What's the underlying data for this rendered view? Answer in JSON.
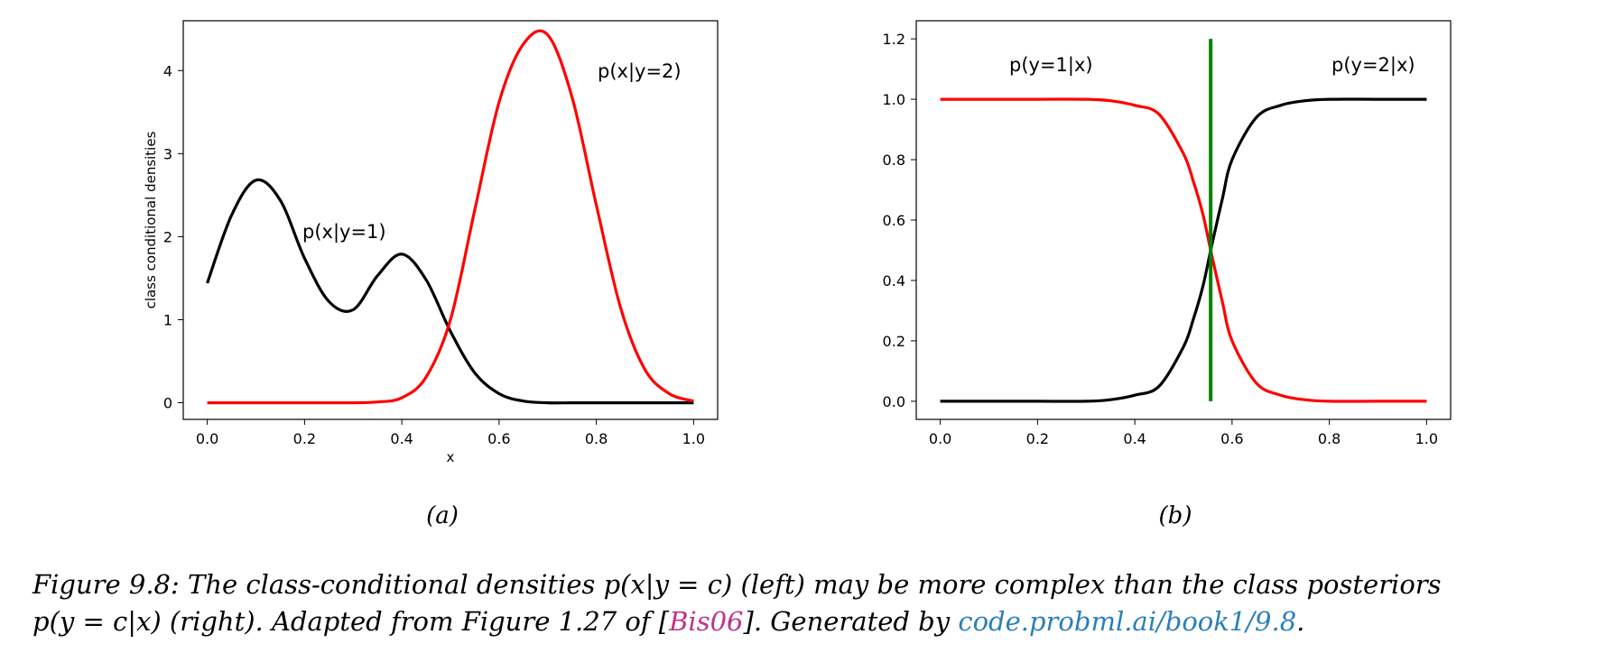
{
  "chart_data": [
    {
      "type": "line",
      "panel_label": "(a)",
      "xlabel": "x",
      "ylabel": "class conditional densities",
      "xlim": [
        0,
        1
      ],
      "ylim": [
        -0.2,
        4.6
      ],
      "xticks": [
        "0.0",
        "0.2",
        "0.4",
        "0.6",
        "0.8",
        "1.0"
      ],
      "yticks": [
        "0",
        "1",
        "2",
        "3",
        "4"
      ],
      "annotations": [
        "p(x|y=1)",
        "p(x|y=2)"
      ],
      "series": [
        {
          "color": "#000000",
          "x": [
            0,
            0.05,
            0.1,
            0.15,
            0.2,
            0.25,
            0.3,
            0.35,
            0.4,
            0.45,
            0.5,
            0.55,
            0.6,
            0.65,
            0.7,
            0.75,
            0.8,
            0.85,
            0.9,
            0.95,
            1.0
          ],
          "y": [
            1.44,
            2.26,
            2.68,
            2.44,
            1.74,
            1.22,
            1.12,
            1.53,
            1.79,
            1.48,
            0.86,
            0.36,
            0.11,
            0.02,
            0,
            0,
            0,
            0,
            0,
            0,
            0
          ]
        },
        {
          "color": "#ff0000",
          "x": [
            0,
            0.05,
            0.1,
            0.15,
            0.2,
            0.25,
            0.3,
            0.35,
            0.4,
            0.45,
            0.5,
            0.55,
            0.6,
            0.65,
            0.7,
            0.75,
            0.8,
            0.85,
            0.9,
            0.95,
            1.0
          ],
          "y": [
            0,
            0,
            0,
            0,
            0,
            0,
            0,
            0.01,
            0.06,
            0.31,
            1.0,
            2.32,
            3.62,
            4.32,
            4.43,
            3.68,
            2.38,
            1.14,
            0.4,
            0.11,
            0.02
          ]
        }
      ]
    },
    {
      "type": "line",
      "panel_label": "(b)",
      "xlim": [
        0,
        1
      ],
      "ylim": [
        -0.06,
        1.26
      ],
      "xticks": [
        "0.0",
        "0.2",
        "0.4",
        "0.6",
        "0.8",
        "1.0"
      ],
      "yticks": [
        "0.0",
        "0.2",
        "0.4",
        "0.6",
        "0.8",
        "1.0",
        "1.2"
      ],
      "annotations": [
        "p(y=1|x)",
        "p(y=2|x)"
      ],
      "decision_boundary": {
        "x": 0.556,
        "y_range": [
          0,
          1.2
        ],
        "color": "#008000"
      },
      "series": [
        {
          "color": "#ff0000",
          "x": [
            0,
            0.1,
            0.2,
            0.3,
            0.35,
            0.4,
            0.45,
            0.5,
            0.52,
            0.54,
            0.556,
            0.58,
            0.6,
            0.65,
            0.7,
            0.75,
            0.8,
            0.9,
            1.0
          ],
          "y": [
            1.0,
            1.0,
            1.0,
            1.0,
            0.995,
            0.98,
            0.95,
            0.82,
            0.73,
            0.62,
            0.5,
            0.33,
            0.2,
            0.06,
            0.02,
            0.005,
            0,
            0,
            0
          ]
        },
        {
          "color": "#000000",
          "x": [
            0,
            0.1,
            0.2,
            0.3,
            0.35,
            0.4,
            0.45,
            0.5,
            0.52,
            0.54,
            0.556,
            0.58,
            0.6,
            0.65,
            0.7,
            0.75,
            0.8,
            0.9,
            1.0
          ],
          "y": [
            0,
            0,
            0,
            0,
            0.005,
            0.02,
            0.05,
            0.18,
            0.27,
            0.38,
            0.5,
            0.67,
            0.8,
            0.94,
            0.98,
            0.995,
            1.0,
            1.0,
            1.0
          ]
        }
      ]
    }
  ],
  "caption": {
    "prefix": "Figure 9.8: The class-conditional densities p(x|y = c) (left) may be more complex than the class posteriors",
    "line2_a": "p(y = c|x) (right). Adapted from Figure 1.27 of [",
    "cite": "Bis06",
    "line2_b": "]. Generated by ",
    "link": "code.probml.ai/book1/9.8",
    "line2_c": "."
  }
}
